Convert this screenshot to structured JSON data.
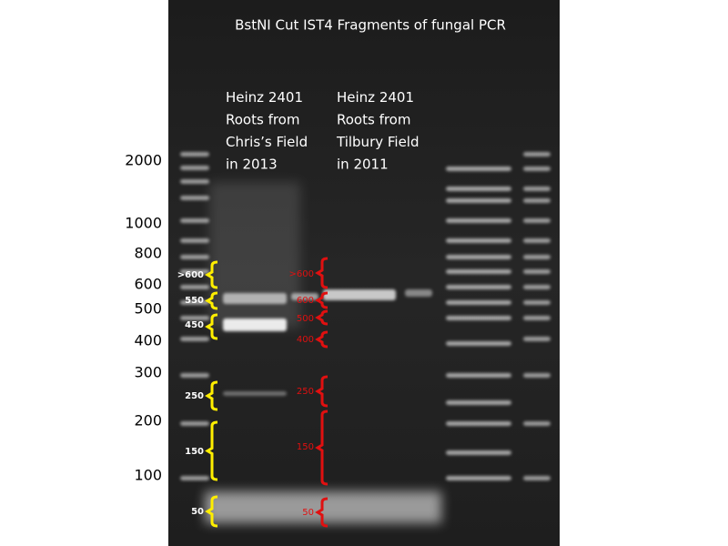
{
  "title": "BstNI Cut IST4 Fragments of fungal PCR",
  "ladder_labels": [
    "2000",
    "1000",
    "800",
    "600",
    "500",
    "400",
    "300",
    "200",
    "100"
  ],
  "lanes": [
    {
      "lines": [
        "Heinz 2401",
        "Roots from",
        "Chris’s Field",
        "in 2013"
      ]
    },
    {
      "lines": [
        "Heinz 2401",
        "Roots from",
        "Tilbury Field",
        "in 2011"
      ]
    }
  ],
  "yellow_labels": [
    ">600",
    "550",
    "450",
    "250",
    "150",
    "50"
  ],
  "red_labels": [
    ">600",
    "600",
    "500",
    "400",
    "250",
    "150",
    "50"
  ]
}
